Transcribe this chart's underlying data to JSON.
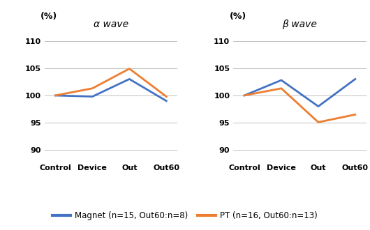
{
  "alpha_magnet": [
    100.0,
    99.8,
    103.0,
    99.0
  ],
  "alpha_pt": [
    100.0,
    101.3,
    104.9,
    99.8
  ],
  "beta_magnet": [
    100.0,
    102.8,
    98.0,
    103.0
  ],
  "beta_pt": [
    100.0,
    101.3,
    95.1,
    96.5
  ],
  "x_labels": [
    "Control",
    "Device",
    "Out",
    "Out60"
  ],
  "alpha_title": "α wave",
  "beta_title": "β wave",
  "ylabel": "(%)",
  "ylim": [
    88,
    112
  ],
  "yticks": [
    90,
    95,
    100,
    105,
    110
  ],
  "magnet_color": "#4472C4",
  "pt_color": "#ED7D31",
  "legend_magnet": "Magnet (n=15, Out60:n=8)",
  "legend_pt": "PT (n=16, Out60:n=13)",
  "line_width": 2.0
}
